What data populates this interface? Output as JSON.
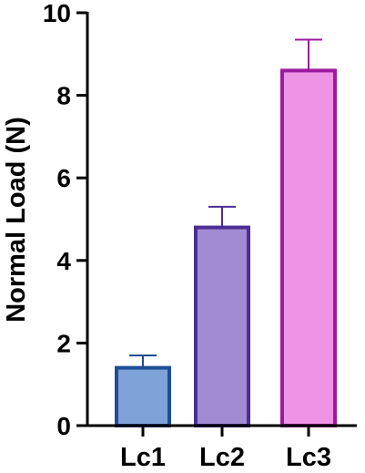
{
  "chart_data": {
    "type": "bar",
    "categories": [
      "Lc1",
      "Lc2",
      "Lc3"
    ],
    "values": [
      1.4,
      4.8,
      8.6
    ],
    "errors": [
      0.3,
      0.5,
      0.75
    ],
    "ylabel": "Normal Load (N)",
    "xlabel": "",
    "title": "",
    "ylim": [
      0,
      10
    ],
    "yticks": [
      0,
      2,
      4,
      6,
      8,
      10
    ],
    "ytick_labels": [
      "0",
      "2",
      "4",
      "6",
      "8",
      "10"
    ],
    "grid": false,
    "legend": "none",
    "bar_colors": [
      {
        "fill": "#7fa3d8",
        "stroke": "#1f4e96"
      },
      {
        "fill": "#a28bd3",
        "stroke": "#4d2d93"
      },
      {
        "fill": "#ee94e6",
        "stroke": "#9b1aa1"
      }
    ],
    "axis_color": "#000000"
  }
}
